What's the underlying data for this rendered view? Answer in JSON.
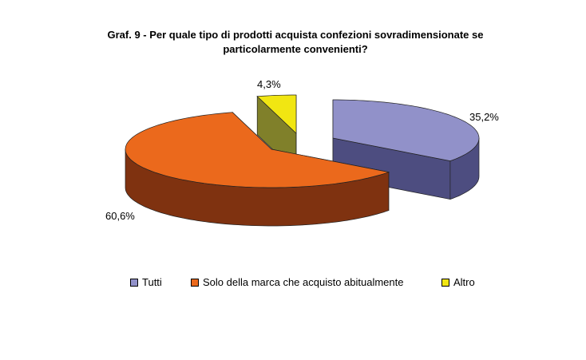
{
  "chart_data": {
    "type": "pie",
    "style": "3d-exploded",
    "title_lines": [
      "Graf. 9 - Per quale tipo di prodotti acquista  confezioni sovradimensionate se",
      "particolarmente convenienti?"
    ],
    "slices": [
      {
        "name": "Tutti",
        "value": 35.2,
        "label": "35,2%",
        "color": "#9191c9",
        "side_color": "#4d4d80"
      },
      {
        "name": "Solo della marca che acquisto abitualmente",
        "value": 60.6,
        "label": "60,6%",
        "color": "#eb691c",
        "side_color": "#7f3210"
      },
      {
        "name": "Altro",
        "value": 4.3,
        "label": "4,3%",
        "color": "#f1e612",
        "side_color": "#80802a"
      }
    ],
    "legend_position": "bottom"
  }
}
